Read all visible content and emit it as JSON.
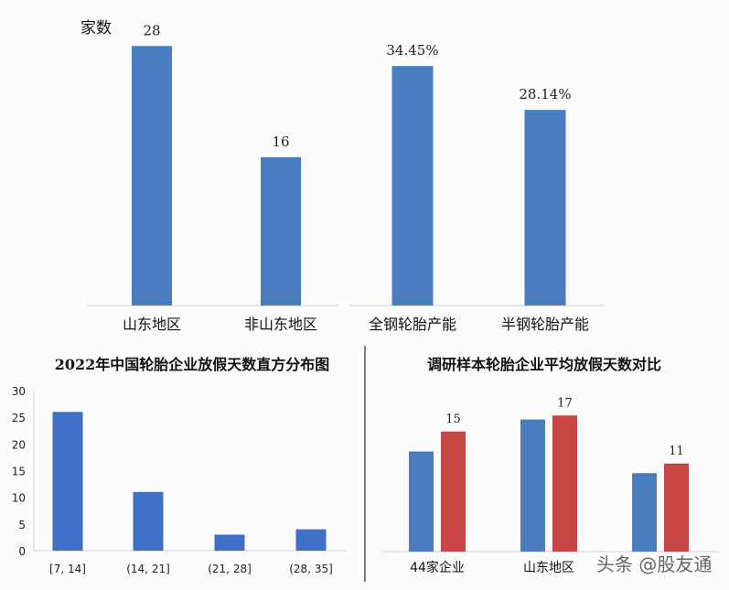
{
  "chart_data": [
    {
      "type": "bar",
      "ylabel": "家数",
      "categories": [
        "山东地区",
        "非山东地区"
      ],
      "values": [
        28,
        16
      ],
      "data_labels": [
        "28",
        "16"
      ],
      "ylim": [
        0,
        30
      ],
      "colors": [
        "#4a7cc0"
      ]
    },
    {
      "type": "bar",
      "categories": [
        "全钢轮胎产能",
        "半钢轮胎产能"
      ],
      "values": [
        34.45,
        28.14
      ],
      "data_labels": [
        "34.45%",
        "28.14%"
      ],
      "ylim": [
        0,
        40
      ],
      "colors": [
        "#4a7cc0"
      ]
    },
    {
      "type": "bar",
      "title": "2022年中国轮胎企业放假天数直方分布图",
      "categories": [
        "[7, 14]",
        "(14, 21]",
        "(21, 28]",
        "(28, 35]"
      ],
      "values": [
        26,
        11,
        3,
        4
      ],
      "ylim": [
        0,
        30
      ],
      "yticks": [
        "0",
        "5",
        "10",
        "15",
        "20",
        "25",
        "30"
      ],
      "grid": false,
      "colors": [
        "#3f6fc6"
      ]
    },
    {
      "type": "bar",
      "title": "调研样本轮胎企业平均放假天数对比",
      "categories": [
        "44家企业",
        "山东地区",
        ""
      ],
      "series": [
        {
          "values": [
            12.5,
            16.5,
            9.8
          ],
          "color": "#4a7cc0"
        },
        {
          "values": [
            15,
            17,
            11
          ],
          "color": "#c64545"
        }
      ],
      "data_labels": [
        "15",
        "17",
        "11"
      ],
      "ylim": [
        0,
        20
      ]
    }
  ],
  "watermark": "头条 @股友通"
}
